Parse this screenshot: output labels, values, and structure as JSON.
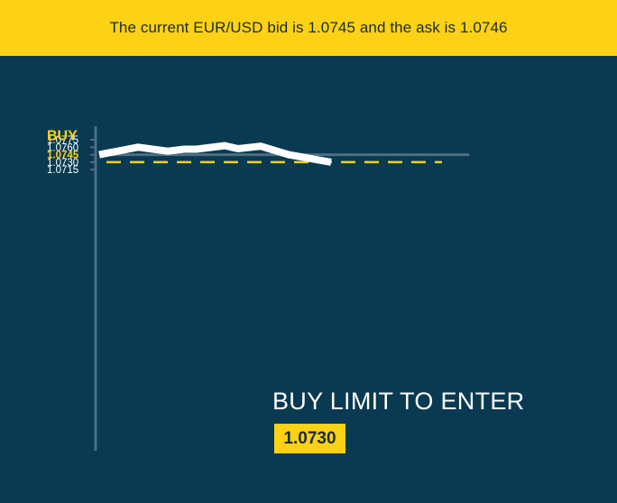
{
  "header": {
    "text": "The current EUR/USD bid is 1.0745 and the ask is 1.0746"
  },
  "chart_data": {
    "type": "line",
    "title": "",
    "xlabel": "",
    "ylabel": "",
    "ylim": [
      1.0712,
      1.0785
    ],
    "y_ticks": [
      "1.0775",
      "1.0760",
      "1.0745",
      "1.0730",
      "1.0715"
    ],
    "highlighted_tick": "1.0745",
    "highlight_label": "BUY",
    "grid": false,
    "series": [
      {
        "x": [
          0,
          1,
          2,
          3,
          4,
          5,
          6,
          7,
          8,
          9
        ],
        "values": [
          1.0745,
          1.076,
          1.0752,
          1.0756,
          1.0756,
          1.0763,
          1.0757,
          1.0762,
          1.0745,
          1.073
        ],
        "color": "#ffffff"
      }
    ],
    "reference_lines": [
      {
        "value": 1.0745,
        "style": "solid",
        "color": "#4e6f80"
      },
      {
        "value": 1.073,
        "style": "dashed",
        "color": "#fcd116"
      }
    ]
  },
  "annotation": {
    "title": "BUY LIMIT TO ENTER",
    "value": "1.0730"
  },
  "colors": {
    "background": "#0a3a52",
    "accent": "#fcd116",
    "line": "#ffffff",
    "axis": "#4e6f80"
  }
}
